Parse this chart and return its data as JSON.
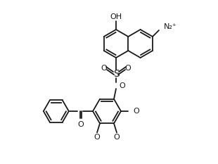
{
  "bg_color": "#ffffff",
  "line_color": "#1a1a1a",
  "line_width": 1.3,
  "fig_width": 3.1,
  "fig_height": 2.33,
  "dpi": 100,
  "note": "Chemical structure: naphthalenediazonium sulfonate ester of benzophenone triol"
}
